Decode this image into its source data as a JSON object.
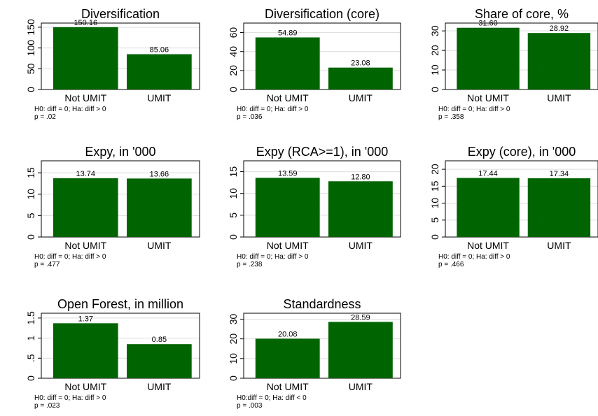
{
  "chart_data": [
    {
      "type": "bar",
      "title": "Diversification",
      "categories": [
        "Not UMIT",
        "UMIT"
      ],
      "values": [
        150.16,
        85.06
      ],
      "value_labels": [
        "150.16",
        "85.06"
      ],
      "ylim": [
        0,
        160
      ],
      "yticks": [
        0,
        50,
        100,
        150
      ],
      "ytick_labels": [
        "0",
        "50",
        "100",
        "150"
      ],
      "note_line1": "H0: diff = 0; Ha: diff > 0",
      "note_line2": "p = .02",
      "grid": true,
      "bar_color": "#006400"
    },
    {
      "type": "bar",
      "title": "Diversification (core)",
      "categories": [
        "Not UMIT",
        "UMIT"
      ],
      "values": [
        54.89,
        23.08
      ],
      "value_labels": [
        "54.89",
        "23.08"
      ],
      "ylim": [
        0,
        70
      ],
      "yticks": [
        0,
        20,
        40,
        60
      ],
      "ytick_labels": [
        "0",
        "20",
        "40",
        "60"
      ],
      "note_line1": "H0: diff = 0; Ha: diff > 0",
      "note_line2": "p = .036",
      "grid": true,
      "bar_color": "#006400"
    },
    {
      "type": "bar",
      "title": "Share of core, %",
      "categories": [
        "Not UMIT",
        "UMIT"
      ],
      "values": [
        31.6,
        28.92
      ],
      "value_labels": [
        "31.60",
        "28.92"
      ],
      "ylim": [
        0,
        34
      ],
      "yticks": [
        0,
        10,
        20,
        30
      ],
      "ytick_labels": [
        "0",
        "10",
        "20",
        "30"
      ],
      "note_line1": "H0: diff = 0; Ha: diff > 0",
      "note_line2": "p = .358",
      "grid": true,
      "bar_color": "#006400"
    },
    {
      "type": "bar",
      "title": "Expy, in '000",
      "categories": [
        "Not UMIT",
        "UMIT"
      ],
      "values": [
        13.74,
        13.66
      ],
      "value_labels": [
        "13.74",
        "13.66"
      ],
      "ylim": [
        0,
        17.8
      ],
      "yticks": [
        0,
        5,
        10,
        15
      ],
      "ytick_labels": [
        "0",
        "5",
        "10",
        "15"
      ],
      "note_line1": "H0: diff = 0; Ha: diff > 0",
      "note_line2": "p = .477",
      "grid": true,
      "bar_color": "#006400"
    },
    {
      "type": "bar",
      "title": "Expy (RCA>=1), in '000",
      "categories": [
        "Not UMIT",
        "UMIT"
      ],
      "values": [
        13.59,
        12.8
      ],
      "value_labels": [
        "13.59",
        "12.80"
      ],
      "ylim": [
        0,
        17.5
      ],
      "yticks": [
        0,
        5,
        10,
        15
      ],
      "ytick_labels": [
        "0",
        "5",
        "10",
        "15"
      ],
      "note_line1": "H0: diff = 0; Ha: diff > 0",
      "note_line2": "p = .238",
      "grid": true,
      "bar_color": "#006400"
    },
    {
      "type": "bar",
      "title": "Expy (core), in '000",
      "categories": [
        "Not UMIT",
        "UMIT"
      ],
      "values": [
        17.44,
        17.34
      ],
      "value_labels": [
        "17.44",
        "17.34"
      ],
      "ylim": [
        0,
        22.5
      ],
      "yticks": [
        0,
        5,
        10,
        15,
        20
      ],
      "ytick_labels": [
        "0",
        "5",
        "10",
        "15",
        "20"
      ],
      "note_line1": "H0: diff = 0; Ha: diff > 0",
      "note_line2": "p = .466",
      "grid": true,
      "bar_color": "#006400"
    },
    {
      "type": "bar",
      "title": "Open Forest, in million",
      "categories": [
        "Not UMIT",
        "UMIT"
      ],
      "values": [
        1.37,
        0.85
      ],
      "value_labels": [
        "1.37",
        "0.85"
      ],
      "ylim": [
        0,
        1.62
      ],
      "yticks": [
        0,
        0.5,
        1,
        1.5
      ],
      "ytick_labels": [
        "0",
        ".5",
        "1",
        "1.5"
      ],
      "note_line1": "H0: diff = 0; Ha: diff > 0",
      "note_line2": "p = .023",
      "grid": true,
      "bar_color": "#006400"
    },
    {
      "type": "bar",
      "title": "Standardness",
      "categories": [
        "Not UMIT",
        "UMIT"
      ],
      "values": [
        20.08,
        28.59
      ],
      "value_labels": [
        "20.08",
        "28.59"
      ],
      "ylim": [
        0,
        33
      ],
      "yticks": [
        0,
        10,
        20,
        30
      ],
      "ytick_labels": [
        "0",
        "10",
        "20",
        "30"
      ],
      "note_line1": "H0:diff = 0; Ha: diff < 0",
      "note_line2": "p = .003",
      "grid": true,
      "bar_color": "#006400"
    }
  ]
}
